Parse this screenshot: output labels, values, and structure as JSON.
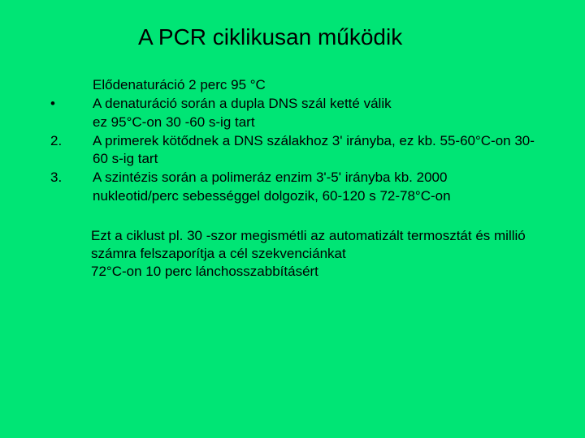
{
  "background_color": "#00e575",
  "text_color": "#000000",
  "font_family": "Arial",
  "title": "A PCR ciklikusan működik",
  "title_fontsize": 28,
  "body_fontsize": 17,
  "rows": [
    {
      "marker": "",
      "text": "Elődenaturáció 2 perc 95 °C"
    },
    {
      "marker": "•",
      "text": "A denaturáció során a dupla DNS szál ketté válik"
    },
    {
      "marker": "",
      "text": "ez 95°C-on 30 -60 s-ig tart"
    },
    {
      "marker": "2.",
      "text": "A primerek kötődnek a DNS szálakhoz 3' irányba, ez kb. 55-60°C-on 30-60 s-ig tart"
    },
    {
      "marker": "3.",
      "text": "A szintézis során a polimeráz enzim 3'-5' irányba kb. 2000 nukleotid/perc sebességgel dolgozik, 60-120 s 72-78°C-on"
    }
  ],
  "footer_lines": [
    "Ezt a ciklust pl. 30 -szor megismétli az automatizált termosztát és millió számra felszaporítja a cél szekvenciánkat",
    "72°C-on 10 perc  lánchosszabbításért"
  ]
}
